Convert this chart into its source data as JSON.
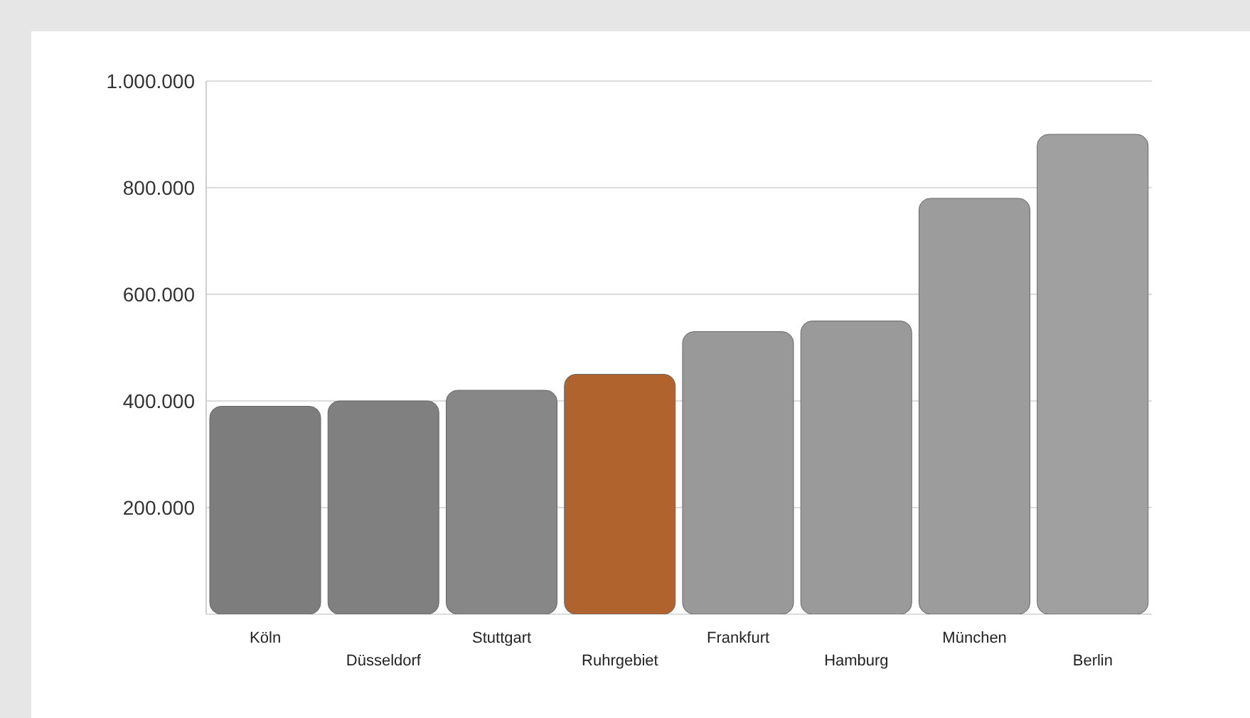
{
  "chart_data": {
    "type": "bar",
    "categories": [
      "Köln",
      "Düsseldorf",
      "Stuttgart",
      "Ruhrgebiet",
      "Frankfurt",
      "Hamburg",
      "München",
      "Berlin"
    ],
    "values": [
      390000,
      400000,
      420000,
      450000,
      530000,
      550000,
      780000,
      900000
    ],
    "colors": [
      "#7d7d7d",
      "#808080",
      "#878787",
      "#b0632c",
      "#999999",
      "#9a9a9a",
      "#9c9c9c",
      "#a0a0a0"
    ],
    "ylim": [
      0,
      1000000
    ],
    "yticks": [
      {
        "value": 200000,
        "label": "200.000"
      },
      {
        "value": 400000,
        "label": "400.000"
      },
      {
        "value": 600000,
        "label": "600.000"
      },
      {
        "value": 800000,
        "label": "800.000"
      },
      {
        "value": 1000000,
        "label": "1.000.000"
      }
    ],
    "grid": "y",
    "legend": false
  }
}
